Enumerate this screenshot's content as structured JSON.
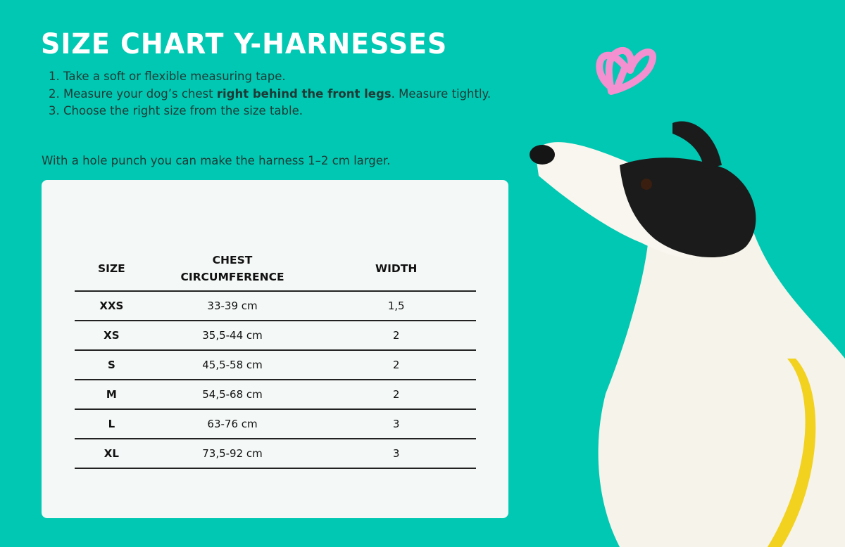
{
  "title": "SIZE CHART Y-HARNESSES",
  "instructions": [
    {
      "before": "Take a soft or flexible measuring tape.",
      "bold": "",
      "after": ""
    },
    {
      "before": "Measure your dog’s chest ",
      "bold": "right behind the front legs",
      "after": ". Measure tightly."
    },
    {
      "before": "Choose the right size from the size table.",
      "bold": "",
      "after": ""
    }
  ],
  "note": "With a hole punch you can make the harness 1–2 cm larger.",
  "table": {
    "headers": [
      "SIZE",
      "CHEST CIRCUMFERENCE",
      "WIDTH"
    ],
    "rows": [
      [
        "XXS",
        "33-39 cm",
        "1,5"
      ],
      [
        "XS",
        "35,5-44 cm",
        "2"
      ],
      [
        "S",
        "45,5-58 cm",
        "2"
      ],
      [
        "M",
        "54,5-68 cm",
        "2"
      ],
      [
        "L",
        "63-76 cm",
        "3"
      ],
      [
        "XL",
        "73,5-92 cm",
        "3"
      ]
    ]
  },
  "colors": {
    "background": "#00c8b2",
    "heart": "#f48fd0",
    "tape": "#f2d21e"
  },
  "images": [
    "heart-doodle",
    "dog-photo-with-measuring-tape"
  ]
}
